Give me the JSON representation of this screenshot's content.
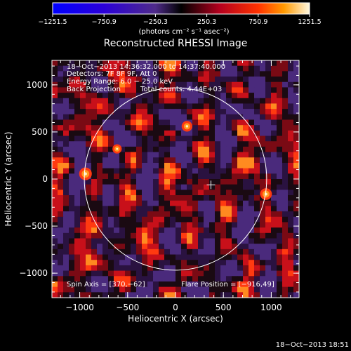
{
  "chart_data": {
    "type": "heatmap",
    "title": "Reconstructed RHESSI Image",
    "xlabel": "Heliocentric X (arcsec)",
    "ylabel": "Heliocentric Y (arcsec)",
    "xlim": [
      -1290,
      1290
    ],
    "ylim": [
      -1260,
      1260
    ],
    "xticks": [
      {
        "value": -1000,
        "label": "−1000"
      },
      {
        "value": -500,
        "label": "−500"
      },
      {
        "value": 0,
        "label": "0"
      },
      {
        "value": 500,
        "label": "500"
      },
      {
        "value": 1000,
        "label": "1000"
      }
    ],
    "yticks": [
      {
        "value": 1000,
        "label": "1000"
      },
      {
        "value": 500,
        "label": "500"
      },
      {
        "value": 0,
        "label": "0"
      },
      {
        "value": -500,
        "label": "−500"
      },
      {
        "value": -1000,
        "label": "−1000"
      }
    ],
    "colorbar": {
      "min": -1251.5,
      "max": 1251.5,
      "tick_labels": [
        "−1251.5",
        "−750.9",
        "−250.3",
        "250.3",
        "750.9",
        "1251.5"
      ],
      "unit_label": "(photons cm⁻² s⁻¹ asec⁻²)"
    },
    "annotations": [
      "18−Oct−2013 14:36:32.000 to 14:37:40.000",
      "Detectors: 7F 8F 9F, Att 0",
      "Energy Range: 6.0 − 25.0 keV",
      "Back Projection",
      "Total counts: 4.44E+03"
    ],
    "spin_axis": "Spin Axis = [370,−62]",
    "flare_position": "Flare Position = [−916,49]",
    "solar_disk": {
      "center": [
        0,
        0
      ],
      "radius": 960
    },
    "marker": {
      "x": 370,
      "y": -62
    },
    "bright_spots": [
      {
        "x": -940,
        "y": 55,
        "value": 1100
      },
      {
        "x": 945,
        "y": -160,
        "value": 1000
      },
      {
        "x": 120,
        "y": 560,
        "value": 880
      },
      {
        "x": -610,
        "y": 320,
        "value": 720
      }
    ],
    "footer_timestamp": "18−Oct−2013 18:51",
    "grid": false,
    "legend": "none"
  }
}
